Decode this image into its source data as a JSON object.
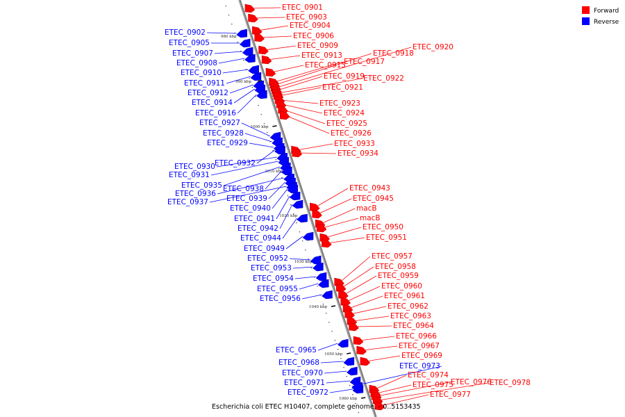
{
  "legend": [
    {
      "label": "Forward",
      "color": "#ff0000"
    },
    {
      "label": "Reverse",
      "color": "#0000ff"
    }
  ],
  "caption": "Escherichia coli ETEC H10407, complete genome. - 0..5153435",
  "colors": {
    "forward": "#ff0000",
    "forward_dark": "#b00000",
    "reverse": "#0000ff",
    "reverse_dark": "#0000a0",
    "backbone": "#7f7f7f"
  },
  "ticks": [
    "980 kbp",
    "990 kbp",
    "1000 kbp",
    "1010 kbp",
    "1020 kbp",
    "1030 kbp",
    "1040 kbp",
    "1050 kbp",
    "1060 kbp"
  ],
  "genes_forward": [
    "ETEC_0901",
    "ETEC_0903",
    "ETEC_0904",
    "ETEC_0906",
    "ETEC_0909",
    "ETEC_0913",
    "ETEC_0915",
    "ETEC_0917",
    "ETEC_0918",
    "ETEC_0920",
    "ETEC_0919",
    "ETEC_0922",
    "ETEC_0921",
    "ETEC_0923",
    "ETEC_0924",
    "ETEC_0925",
    "ETEC_0926",
    "ETEC_0933",
    "ETEC_0934",
    "ETEC_0943",
    "ETEC_0945",
    "macB",
    "macB",
    "ETEC_0950",
    "ETEC_0951",
    "ETEC_0957",
    "ETEC_0958",
    "ETEC_0959",
    "ETEC_0960",
    "ETEC_0961",
    "ETEC_0962",
    "ETEC_0963",
    "ETEC_0964",
    "ETEC_0966",
    "ETEC_0967",
    "ETEC_0969",
    "ETEC_0974",
    "ETEC_0975",
    "ETEC_0976",
    "ETEC_0978",
    "ETEC_0977"
  ],
  "genes_reverse": [
    "ETEC_0902",
    "ETEC_0905",
    "ETEC_0907",
    "ETEC_0908",
    "ETEC_0910",
    "ETEC_0911",
    "ETEC_0912",
    "ETEC_0914",
    "ETEC_0916",
    "ETEC_0927",
    "ETEC_0928",
    "ETEC_0929",
    "ETEC_0932",
    "ETEC_0930",
    "ETEC_0931",
    "ETEC_0935",
    "ETEC_0938",
    "ETEC_0936",
    "ETEC_0939",
    "ETEC_0937",
    "ETEC_0940",
    "ETEC_0941",
    "ETEC_0942",
    "ETEC_0944",
    "ETEC_0949",
    "ETEC_0952",
    "ETEC_0953",
    "ETEC_0954",
    "ETEC_0955",
    "ETEC_0956",
    "ETEC_0965",
    "ETEC_0968",
    "ETEC_0970",
    "ETEC_0971",
    "ETEC_0972",
    "ETEC_0973"
  ]
}
